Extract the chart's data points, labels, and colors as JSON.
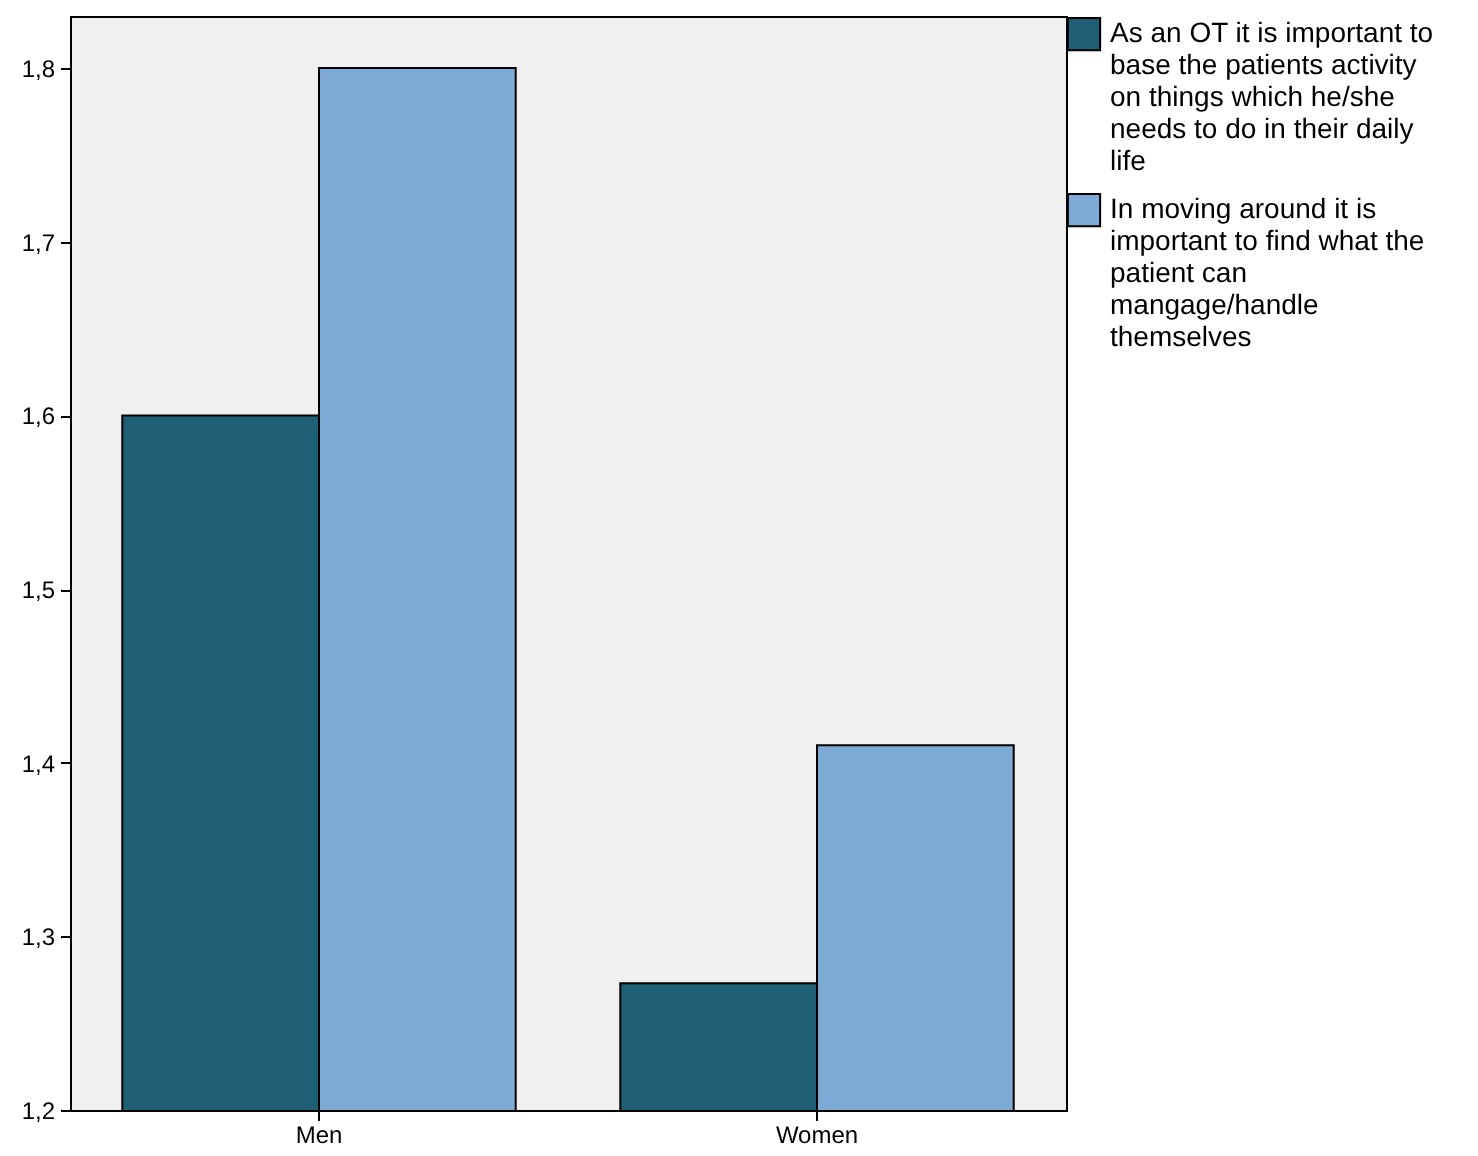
{
  "chart_data": {
    "type": "bar",
    "categories": [
      "Men",
      "Women"
    ],
    "series": [
      {
        "name": "As an OT it is important to base the patients activity on things which he/she needs to do in their daily life",
        "color": "#1f5f75",
        "values": [
          1.6,
          1.273
        ]
      },
      {
        "name": "In moving around it is important to find what the patient can mangage/handle themselves",
        "color": "#7eaad6",
        "values": [
          1.8,
          1.41
        ]
      }
    ],
    "ylim": [
      1.2,
      1.83
    ],
    "yticks": [
      {
        "value": 1.2,
        "label": "1,2"
      },
      {
        "value": 1.3,
        "label": "1,3"
      },
      {
        "value": 1.4,
        "label": "1,4"
      },
      {
        "value": 1.5,
        "label": "1,5"
      },
      {
        "value": 1.6,
        "label": "1,6"
      },
      {
        "value": 1.7,
        "label": "1,7"
      },
      {
        "value": 1.8,
        "label": "1,8"
      }
    ],
    "grid": false,
    "legend": "right"
  }
}
